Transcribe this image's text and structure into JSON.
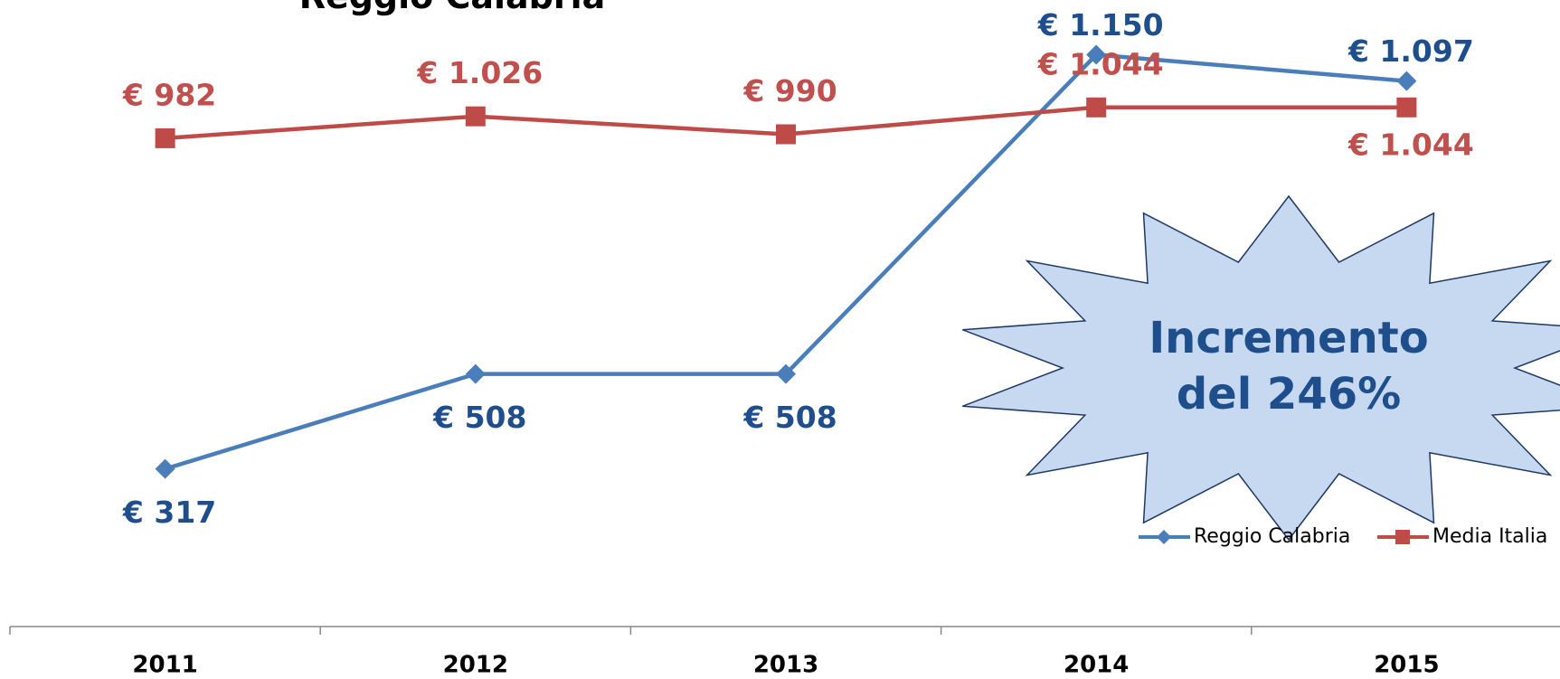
{
  "chart_data": {
    "type": "line",
    "title": "Reggio Calabria",
    "categories": [
      "2011",
      "2012",
      "2013",
      "2014",
      "2015"
    ],
    "series": [
      {
        "name": "Reggio Calabria",
        "color": "#4a7ebb",
        "label_color": "#1f4e8c",
        "marker": "diamond",
        "values": [
          317,
          508,
          508,
          1150,
          1097
        ],
        "value_labels": [
          "€ 317",
          "€ 508",
          "€ 508",
          "€ 1.150",
          "€ 1.097"
        ]
      },
      {
        "name": "Media Italia",
        "color": "#be4b48",
        "label_color": "#c0504d",
        "marker": "square",
        "values": [
          982,
          1026,
          990,
          1044,
          1044
        ],
        "value_labels": [
          "€ 982",
          "€ 1.026",
          "€ 990",
          "€ 1.044",
          "€ 1.044"
        ]
      }
    ],
    "ylim": [
      0,
      1260
    ],
    "annotation": [
      "Incremento",
      "del 246%"
    ],
    "legend": "bottom-right"
  }
}
